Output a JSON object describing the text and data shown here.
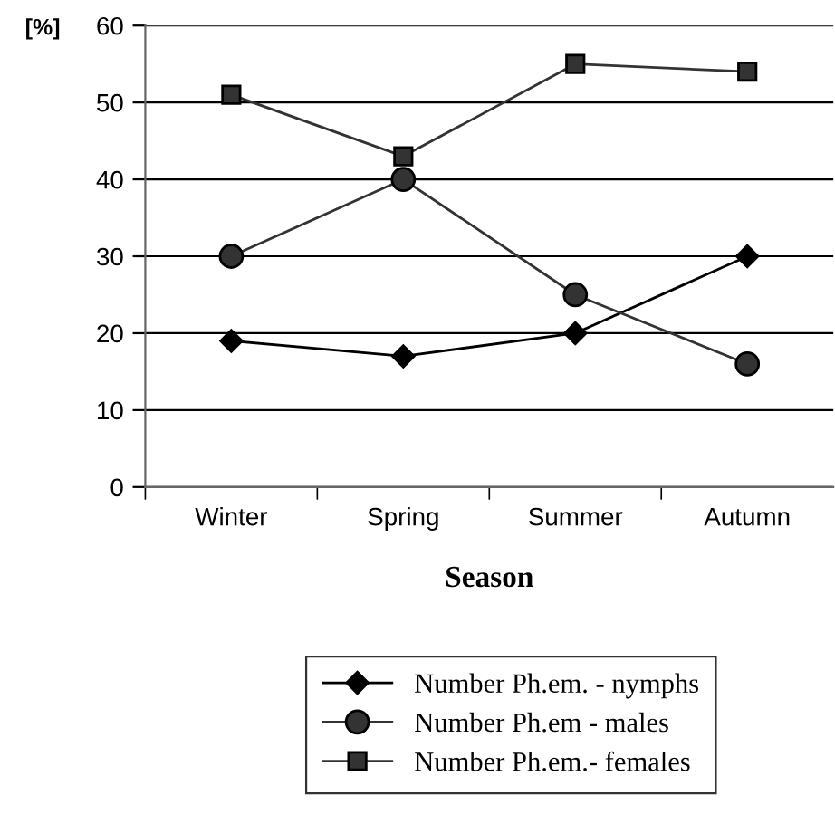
{
  "chart_data": {
    "type": "line",
    "ylabel": "[%]",
    "xlabel": "Season",
    "categories": [
      "Winter",
      "Spring",
      "Summer",
      "Autumn"
    ],
    "series": [
      {
        "name": "Number Ph.em. - nymphs",
        "color": "#000000",
        "marker": "diamond",
        "values": [
          19,
          17,
          20,
          30
        ]
      },
      {
        "name": "Number Ph.em - males",
        "color": "#333333",
        "marker": "circle",
        "values": [
          30,
          40,
          25,
          16
        ]
      },
      {
        "name": "Number Ph.em.- females",
        "color": "#333333",
        "marker": "square",
        "values": [
          51,
          43,
          55,
          54
        ]
      }
    ],
    "ylim": [
      0,
      60
    ],
    "yticks": [
      0,
      10,
      20,
      30,
      40,
      50,
      60
    ],
    "grid": "y",
    "legend": "bottom",
    "line_style": "solid"
  }
}
